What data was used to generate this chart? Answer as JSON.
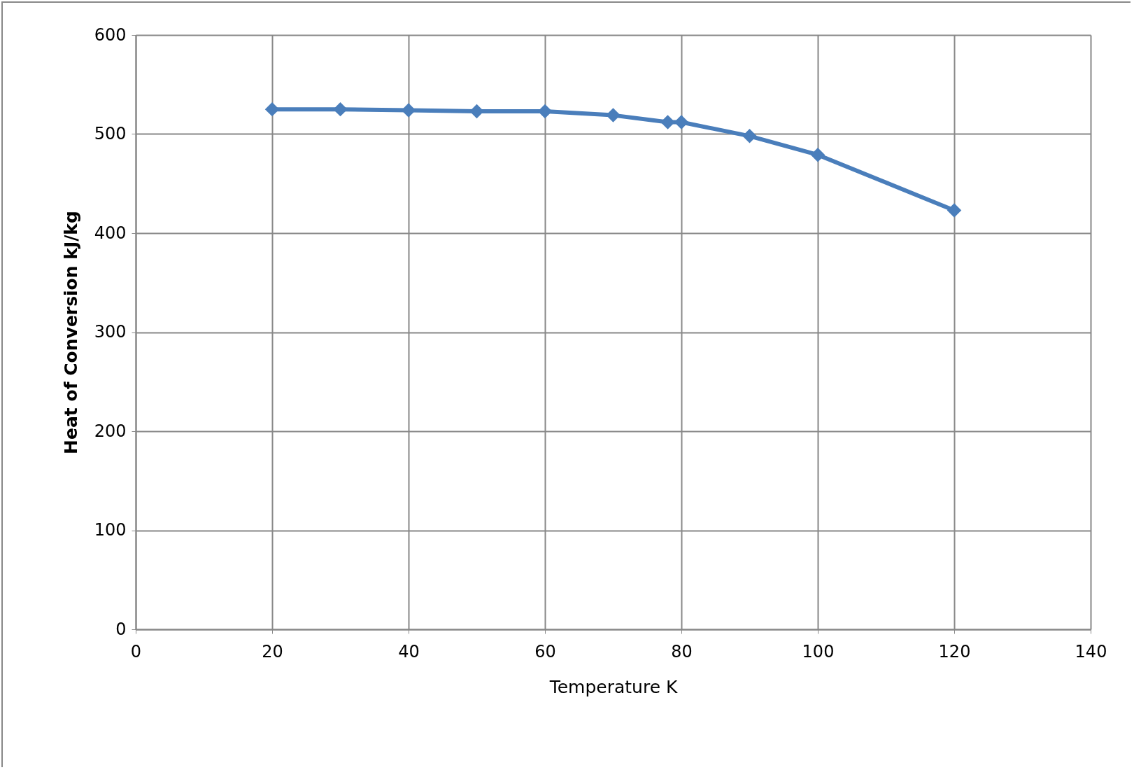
{
  "chart_data": {
    "type": "line",
    "xlabel": "Temperature K",
    "ylabel": "Heat of Conversion  kJ/kg",
    "x": [
      20,
      30,
      40,
      50,
      60,
      70,
      78,
      80,
      90,
      100,
      120
    ],
    "series": [
      {
        "color": "#4a7ebb",
        "values": [
          525,
          525,
          524,
          523,
          523,
          519,
          512,
          512,
          498,
          479,
          423
        ]
      }
    ],
    "xlim": [
      0,
      140
    ],
    "xticks": [
      0,
      20,
      40,
      60,
      80,
      100,
      120,
      140
    ],
    "ylim": [
      0,
      600
    ],
    "yticks": [
      0,
      100,
      200,
      300,
      400,
      500,
      600
    ],
    "grid": true,
    "marker": "diamond",
    "line_style": "solid",
    "legend": false
  }
}
